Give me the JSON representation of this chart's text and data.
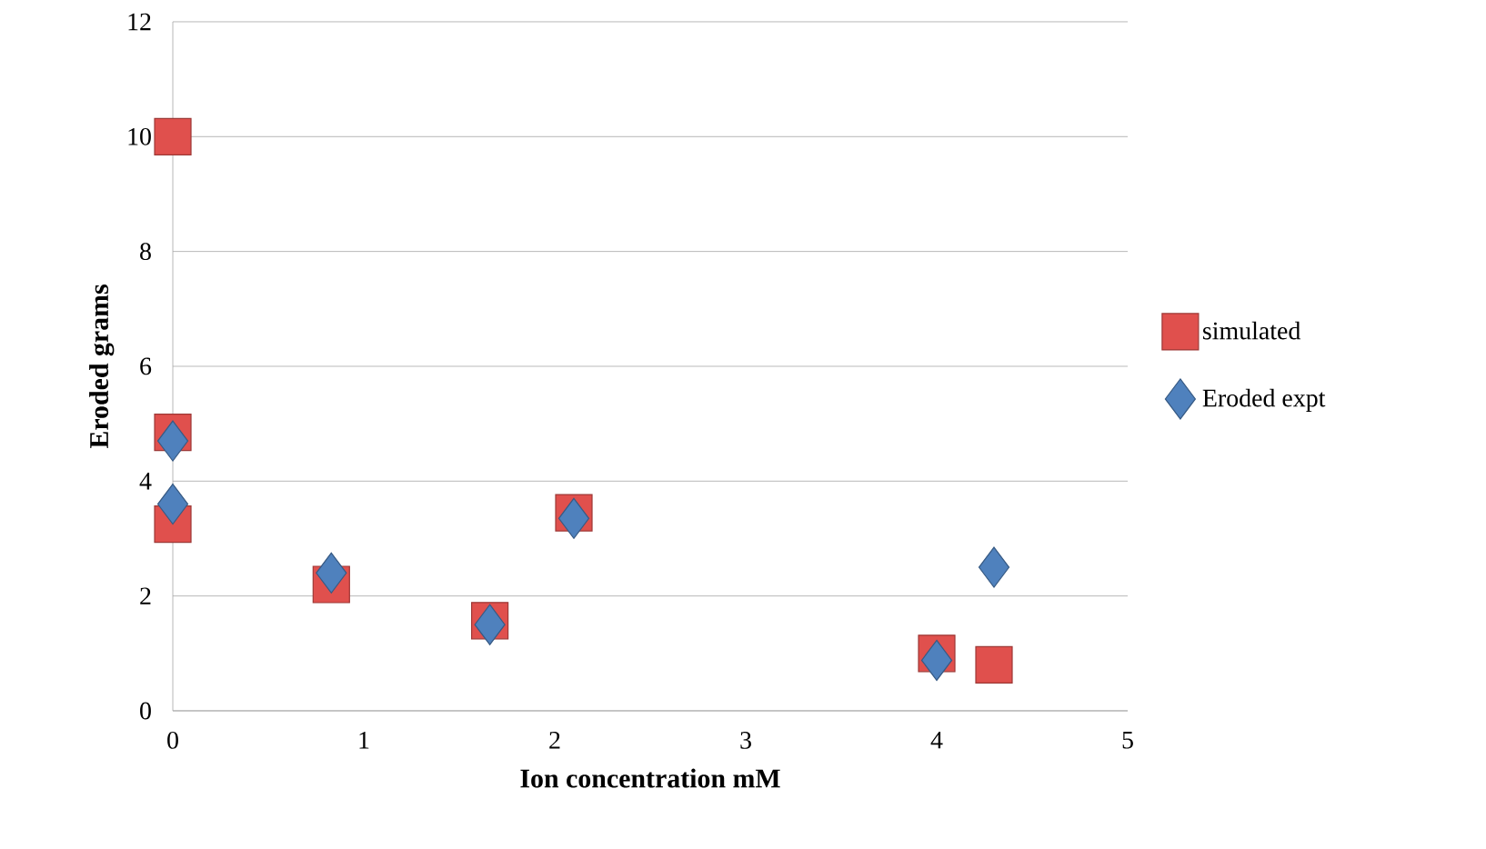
{
  "chart_data": {
    "type": "scatter",
    "xlabel": "Ion concentration mM",
    "ylabel": "Eroded grams",
    "xlim": [
      0,
      5
    ],
    "xticks": [
      0,
      1,
      2,
      3,
      4,
      5
    ],
    "ylim": [
      0,
      12
    ],
    "yticks": [
      0,
      2,
      4,
      6,
      8,
      10,
      12
    ],
    "grid": "y",
    "legend": "right",
    "series": [
      {
        "name": "simulated",
        "color": "#e0504d",
        "marker": "square",
        "x": [
          0,
          0,
          0,
          0.83,
          1.66,
          2.1,
          4.0,
          4.3
        ],
        "values": [
          10,
          4.85,
          3.25,
          2.2,
          1.57,
          3.45,
          1.0,
          0.8
        ]
      },
      {
        "name": "Eroded expt",
        "color": "#4f81bd",
        "marker": "diamond",
        "x": [
          0,
          0,
          0.83,
          1.66,
          2.1,
          4.0,
          4.3
        ],
        "values": [
          4.7,
          3.6,
          2.4,
          1.5,
          3.35,
          0.88,
          2.5
        ]
      }
    ]
  }
}
